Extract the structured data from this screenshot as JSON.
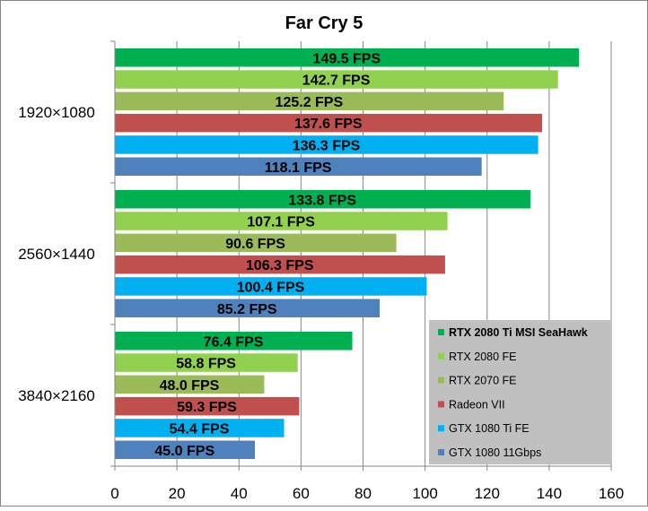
{
  "chart_data": {
    "type": "bar",
    "orientation": "horizontal",
    "title": "Far Cry 5",
    "xlabel": "",
    "ylabel": "",
    "xlim": [
      0,
      160
    ],
    "x_ticks": [
      0,
      20,
      40,
      60,
      80,
      100,
      120,
      140,
      160
    ],
    "grid": "vertical",
    "legend_position": "bottom-right",
    "value_suffix": " FPS",
    "categories": [
      "1920×1080",
      "2560×1440",
      "3840×2160"
    ],
    "series": [
      {
        "name": "RTX 2080 Ti MSI SeaHawk",
        "color": "#00b050",
        "bold_legend": true,
        "values": [
          149.5,
          133.8,
          76.4
        ]
      },
      {
        "name": "RTX 2080 FE",
        "color": "#92d050",
        "bold_legend": false,
        "values": [
          142.7,
          107.1,
          58.8
        ]
      },
      {
        "name": "RTX 2070 FE",
        "color": "#9bbb59",
        "bold_legend": false,
        "values": [
          125.2,
          90.6,
          48.0
        ]
      },
      {
        "name": "Radeon VII",
        "color": "#c0504d",
        "bold_legend": false,
        "values": [
          137.6,
          106.3,
          59.3
        ]
      },
      {
        "name": "GTX 1080 Ti FE",
        "color": "#00b0f0",
        "bold_legend": false,
        "values": [
          136.3,
          100.4,
          54.4
        ]
      },
      {
        "name": "GTX 1080 11Gbps",
        "color": "#4f81bd",
        "bold_legend": false,
        "values": [
          118.1,
          85.2,
          45.0
        ]
      }
    ]
  }
}
